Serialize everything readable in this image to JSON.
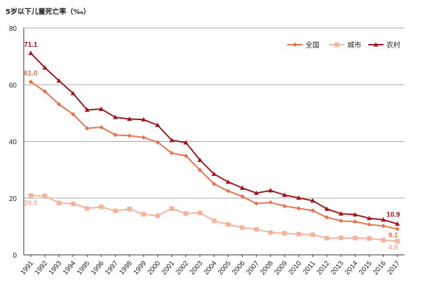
{
  "chart_data": {
    "type": "line",
    "title": "",
    "ylabel": "5岁以下儿童死亡率（‰）",
    "xlabel": "",
    "ylim": [
      0,
      80
    ],
    "yticks": [
      0,
      20,
      40,
      60,
      80
    ],
    "grid": "horizontal",
    "legend_position": "top-right",
    "x": [
      "1991",
      "1992",
      "1993",
      "1994",
      "1995",
      "1996",
      "1997",
      "1998",
      "1999",
      "2000",
      "2001",
      "2002",
      "2003",
      "2004",
      "2005",
      "2006",
      "2007",
      "2008",
      "2009",
      "2010",
      "2011",
      "2012",
      "2013",
      "2014",
      "2015",
      "2016",
      "2017"
    ],
    "series": [
      {
        "name": "全国",
        "color": "#E8744F",
        "marker": "diamond",
        "values": [
          61.0,
          57.6,
          53.1,
          49.6,
          44.6,
          45.0,
          42.3,
          42.0,
          41.4,
          39.7,
          35.9,
          34.9,
          29.9,
          25.0,
          22.5,
          20.6,
          18.1,
          18.5,
          17.2,
          16.4,
          15.6,
          13.2,
          12.0,
          11.7,
          10.7,
          10.2,
          9.1
        ]
      },
      {
        "name": "城市",
        "color": "#F4B49A",
        "marker": "square",
        "values": [
          20.9,
          20.8,
          18.3,
          18.0,
          16.4,
          16.9,
          15.5,
          16.2,
          14.3,
          13.8,
          16.3,
          14.6,
          14.8,
          12.0,
          10.7,
          9.6,
          9.0,
          7.9,
          7.6,
          7.3,
          7.1,
          5.9,
          6.0,
          5.9,
          5.8,
          5.2,
          4.8
        ]
      },
      {
        "name": "农村",
        "color": "#A0181E",
        "marker": "triangle",
        "values": [
          71.1,
          66.0,
          61.4,
          56.9,
          51.1,
          51.4,
          48.5,
          47.9,
          47.7,
          45.7,
          40.4,
          39.6,
          33.4,
          28.5,
          25.7,
          23.6,
          21.8,
          22.7,
          21.1,
          20.1,
          19.1,
          16.2,
          14.5,
          14.2,
          12.9,
          12.4,
          10.9
        ]
      }
    ],
    "annotations": [
      {
        "text": "71.1",
        "series": 2,
        "index": 0,
        "color": "#A0181E"
      },
      {
        "text": "61.0",
        "series": 0,
        "index": 0,
        "color": "#E8744F"
      },
      {
        "text": "20.9",
        "series": 1,
        "index": 0,
        "color": "#F4B49A"
      },
      {
        "text": "10.9",
        "series": 2,
        "index": 26,
        "color": "#A0181E"
      },
      {
        "text": "9.1",
        "series": 0,
        "index": 26,
        "color": "#E8744F"
      },
      {
        "text": "4.8",
        "series": 1,
        "index": 26,
        "color": "#F4B49A"
      }
    ]
  }
}
